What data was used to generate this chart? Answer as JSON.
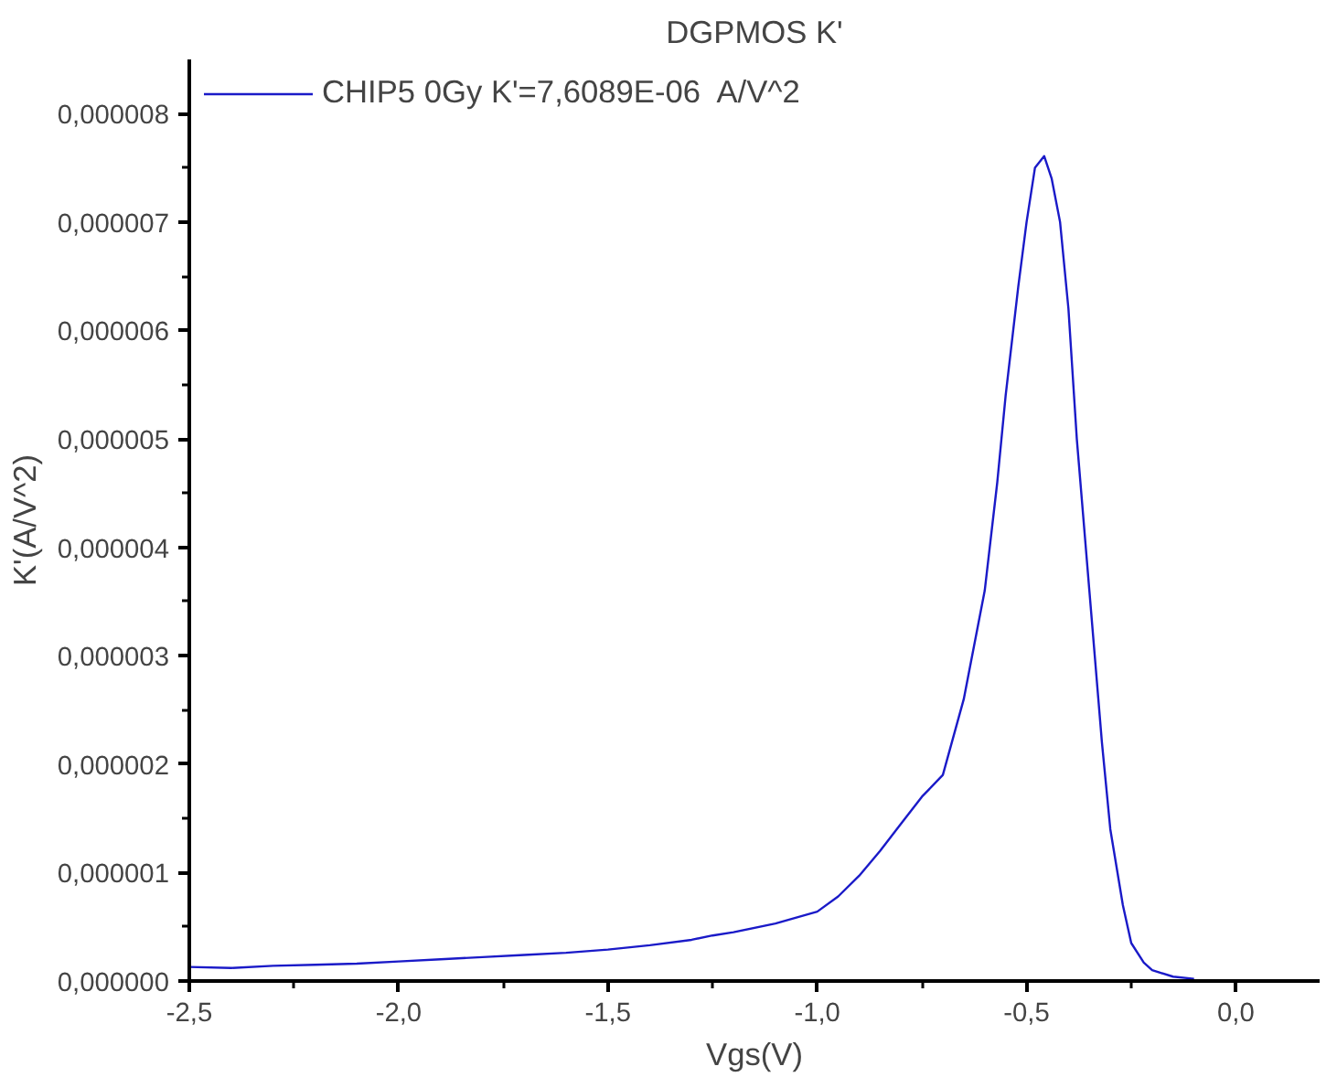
{
  "chart_data": {
    "type": "line",
    "title": "DGPMOS K'",
    "xlabel": "Vgs(V)",
    "ylabel": "K'(A/V^2)",
    "xlim": [
      -2.5,
      0.2
    ],
    "ylim": [
      0,
      8.5e-06
    ],
    "xticks": [
      {
        "value": -2.5,
        "label": "-2,5"
      },
      {
        "value": -2.0,
        "label": "-2,0"
      },
      {
        "value": -1.5,
        "label": "-1,5"
      },
      {
        "value": -1.0,
        "label": "-1,0"
      },
      {
        "value": -0.5,
        "label": "-0,5"
      },
      {
        "value": 0.0,
        "label": "0,0"
      }
    ],
    "yticks": [
      {
        "value": 0,
        "label": "0,000000"
      },
      {
        "value": 1e-06,
        "label": "0,000001"
      },
      {
        "value": 2e-06,
        "label": "0,000002"
      },
      {
        "value": 3e-06,
        "label": "0,000003"
      },
      {
        "value": 4e-06,
        "label": "0,000004"
      },
      {
        "value": 5e-06,
        "label": "0,000005"
      },
      {
        "value": 6e-06,
        "label": "0,000006"
      },
      {
        "value": 7e-06,
        "label": "0,000007"
      },
      {
        "value": 8e-06,
        "label": "0,000008"
      }
    ],
    "grid": false,
    "legend": "top left",
    "marker": "none",
    "line_style": "solid",
    "series": [
      {
        "name": "CHIP5 0Gy K'=7,6089E-06  A/V^2",
        "color": "#1a1ac8",
        "x": [
          -2.5,
          -2.4,
          -2.3,
          -2.2,
          -2.1,
          -2.0,
          -1.9,
          -1.8,
          -1.7,
          -1.6,
          -1.5,
          -1.4,
          -1.3,
          -1.25,
          -1.2,
          -1.1,
          -1.0,
          -0.95,
          -0.9,
          -0.85,
          -0.8,
          -0.75,
          -0.7,
          -0.65,
          -0.6,
          -0.57,
          -0.55,
          -0.52,
          -0.5,
          -0.48,
          -0.458,
          -0.44,
          -0.42,
          -0.4,
          -0.38,
          -0.35,
          -0.32,
          -0.3,
          -0.27,
          -0.25,
          -0.22,
          -0.2,
          -0.15,
          -0.1
        ],
        "values": [
          1.3e-07,
          1.2e-07,
          1.4e-07,
          1.5e-07,
          1.6e-07,
          1.8e-07,
          2e-07,
          2.2e-07,
          2.4e-07,
          2.6e-07,
          2.9e-07,
          3.3e-07,
          3.8e-07,
          4.2e-07,
          4.5e-07,
          5.3e-07,
          6.4e-07,
          7.8e-07,
          9.7e-07,
          1.2e-06,
          1.45e-06,
          1.7e-06,
          1.9e-06,
          2.6e-06,
          3.6e-06,
          4.6e-06,
          5.4e-06,
          6.4e-06,
          7e-06,
          7.5e-06,
          7.6089e-06,
          7.4e-06,
          7e-06,
          6.2e-06,
          5e-06,
          3.6e-06,
          2.2e-06,
          1.4e-06,
          7e-07,
          3.5e-07,
          1.7e-07,
          1e-07,
          4e-08,
          2e-08
        ]
      }
    ]
  }
}
